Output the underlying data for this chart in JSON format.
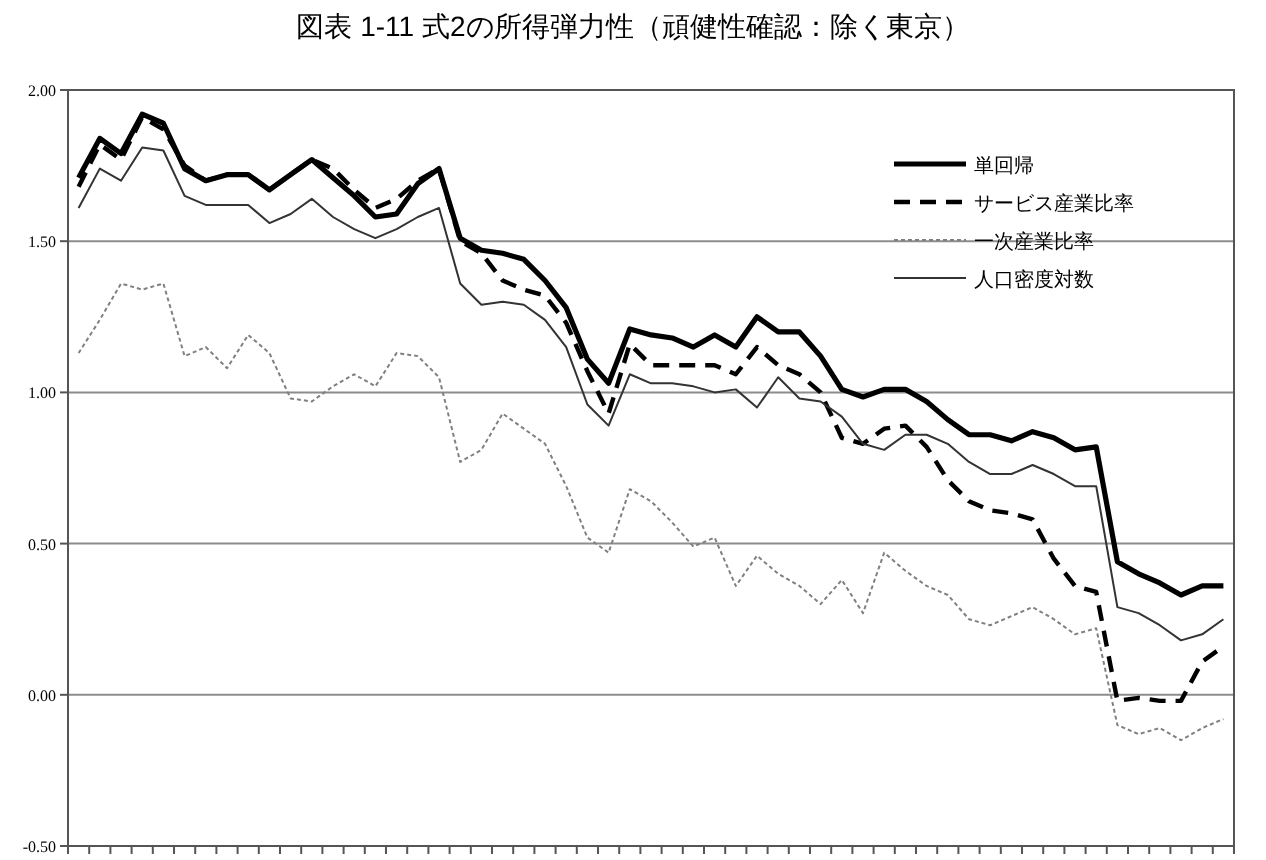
{
  "chart_data": {
    "type": "line",
    "title": "図表 1-11 式2の所得弾力性（頑健性確認：除く東京）",
    "categories": [
      null,
      null,
      null,
      null,
      null,
      null,
      null,
      null,
      null,
      null,
      null,
      null,
      null,
      null,
      null,
      null,
      null,
      null,
      null,
      null,
      null,
      null,
      null,
      null,
      null,
      null,
      null,
      null,
      null,
      null,
      null,
      null,
      null,
      null,
      null,
      null,
      null,
      null,
      null,
      null,
      null,
      null,
      null,
      null,
      null,
      null,
      null,
      null,
      null,
      null,
      null,
      null,
      null,
      null,
      null
    ],
    "ylim": [
      -0.5,
      2.0
    ],
    "yticks": [
      {
        "value": -0.5,
        "label": "-0.50"
      },
      {
        "value": 0,
        "label": "0.00"
      },
      {
        "value": 0.5,
        "label": "0.50"
      },
      {
        "value": 1.0,
        "label": "1.00"
      },
      {
        "value": 1.5,
        "label": "1.50"
      },
      {
        "value": 2.0,
        "label": "2.00"
      }
    ],
    "grid": "y",
    "legend": "top right",
    "marker": "none",
    "series": [
      {
        "name": "単回帰",
        "color": "#000000",
        "line_style": "solid",
        "values": [
          1.71,
          1.84,
          1.79,
          1.92,
          1.89,
          1.74,
          1.7,
          1.72,
          1.72,
          1.67,
          1.72,
          1.77,
          1.71,
          1.65,
          1.58,
          1.59,
          1.69,
          1.74,
          1.51,
          1.47,
          1.46,
          1.44,
          1.37,
          1.28,
          1.11,
          1.03,
          1.21,
          1.19,
          1.18,
          1.15,
          1.19,
          1.15,
          1.25,
          1.2,
          1.2,
          1.12,
          1.01,
          0.985,
          1.01,
          1.01,
          0.97,
          0.91,
          0.86,
          0.86,
          0.84,
          0.87,
          0.85,
          0.81,
          0.82,
          0.44,
          0.4,
          0.37,
          0.33,
          0.36,
          0.36
        ]
      },
      {
        "name": "サービス産業比率",
        "color": "#000000",
        "line_style": "dashed",
        "values": [
          1.68,
          1.82,
          1.77,
          1.91,
          1.87,
          1.75,
          1.7,
          1.72,
          1.72,
          1.67,
          1.72,
          1.77,
          1.74,
          1.67,
          1.61,
          1.64,
          1.7,
          1.74,
          1.5,
          1.46,
          1.37,
          1.34,
          1.32,
          1.23,
          1.07,
          0.93,
          1.16,
          1.09,
          1.09,
          1.09,
          1.09,
          1.06,
          1.15,
          1.09,
          1.06,
          1.0,
          0.85,
          0.83,
          0.88,
          0.89,
          0.82,
          0.71,
          0.64,
          0.61,
          0.6,
          0.58,
          0.45,
          0.36,
          0.34,
          -0.02,
          -0.01,
          -0.02,
          -0.02,
          0.11,
          0.16
        ]
      },
      {
        "name": "一次産業比率",
        "color": "#808080",
        "line_style": "dotted",
        "values": [
          1.13,
          1.24,
          1.36,
          1.34,
          1.36,
          1.12,
          1.15,
          1.08,
          1.19,
          1.13,
          0.98,
          0.97,
          1.02,
          1.06,
          1.02,
          1.13,
          1.12,
          1.05,
          0.77,
          0.81,
          0.93,
          0.88,
          0.83,
          0.69,
          0.52,
          0.47,
          0.68,
          0.64,
          0.57,
          0.49,
          0.52,
          0.36,
          0.46,
          0.4,
          0.36,
          0.3,
          0.38,
          0.27,
          0.47,
          0.41,
          0.36,
          0.33,
          0.25,
          0.23,
          0.26,
          0.29,
          0.25,
          0.2,
          0.22,
          -0.1,
          -0.13,
          -0.11,
          -0.15,
          -0.11,
          -0.08
        ]
      },
      {
        "name": "人口密度対数",
        "color": "#333333",
        "line_style": "solid",
        "values": [
          1.61,
          1.74,
          1.7,
          1.81,
          1.8,
          1.65,
          1.62,
          1.62,
          1.62,
          1.56,
          1.59,
          1.64,
          1.58,
          1.54,
          1.51,
          1.54,
          1.58,
          1.61,
          1.36,
          1.29,
          1.3,
          1.29,
          1.24,
          1.15,
          0.96,
          0.89,
          1.06,
          1.03,
          1.03,
          1.02,
          1.0,
          1.01,
          0.95,
          1.05,
          0.98,
          0.97,
          0.92,
          0.83,
          0.81,
          0.86,
          0.86,
          0.83,
          0.77,
          0.73,
          0.73,
          0.76,
          0.73,
          0.69,
          0.69,
          0.29,
          0.27,
          0.23,
          0.18,
          0.2,
          0.25
        ]
      }
    ]
  }
}
